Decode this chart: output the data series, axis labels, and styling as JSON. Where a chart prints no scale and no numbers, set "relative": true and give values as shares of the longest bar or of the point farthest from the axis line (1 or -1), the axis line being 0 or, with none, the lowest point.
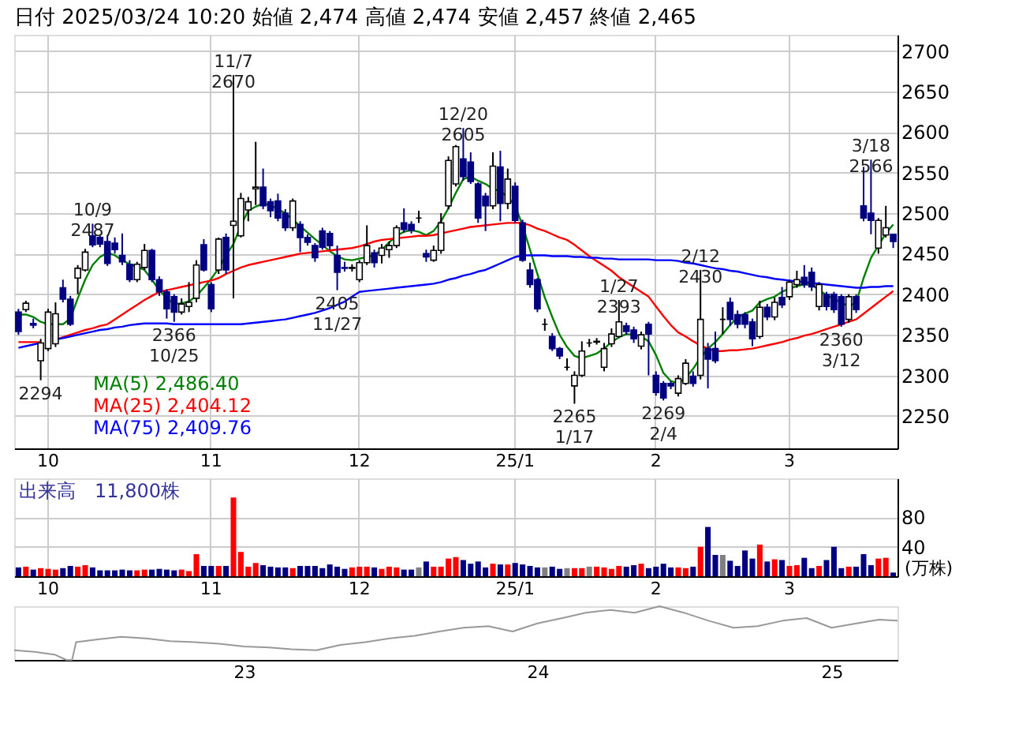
{
  "chart_data": [
    {
      "type": "candlestick",
      "title": "日付 2025/03/24 10:20 始値 2,474 高値 2,474 安値 2,457 終値 2,465",
      "categories": [
        null,
        null,
        null,
        null,
        "10",
        null,
        null,
        null,
        null,
        null,
        null,
        null,
        null,
        null,
        null,
        null,
        null,
        null,
        null,
        null,
        null,
        null,
        null,
        null,
        null,
        null,
        "11",
        null,
        null,
        null,
        null,
        null,
        null,
        null,
        null,
        null,
        null,
        null,
        null,
        null,
        null,
        null,
        null,
        null,
        null,
        null,
        "12",
        null,
        null,
        null,
        null,
        null,
        null,
        null,
        null,
        null,
        null,
        null,
        null,
        null,
        null,
        null,
        null,
        null,
        null,
        null,
        null,
        "25/1",
        null,
        null,
        null,
        null,
        null,
        null,
        null,
        null,
        null,
        null,
        null,
        null,
        null,
        null,
        null,
        null,
        null,
        null,
        "2",
        null,
        null,
        null,
        null,
        null,
        null,
        null,
        null,
        null,
        null,
        null,
        null,
        null,
        null,
        null,
        null,
        null,
        "3",
        null,
        null,
        null,
        null,
        null,
        null,
        null,
        null,
        null,
        null,
        null,
        null,
        null,
        null
      ],
      "ohlc": [
        [
          2378,
          2382,
          2350,
          2354
        ],
        [
          2381,
          2392,
          2378,
          2389
        ],
        [
          2364,
          2370,
          2358,
          2362
        ],
        [
          2318,
          2345,
          2294,
          2340
        ],
        [
          2333,
          2382,
          2330,
          2378
        ],
        [
          2339,
          2390,
          2335,
          2376
        ],
        [
          2408,
          2418,
          2390,
          2394
        ],
        [
          2394,
          2398,
          2361,
          2363
        ],
        [
          2420,
          2436,
          2400,
          2432
        ],
        [
          2430,
          2456,
          2428,
          2452
        ],
        [
          2472,
          2487,
          2458,
          2461
        ],
        [
          2470,
          2472,
          2458,
          2462
        ],
        [
          2465,
          2473,
          2435,
          2438
        ],
        [
          2463,
          2470,
          2450,
          2455
        ],
        [
          2448,
          2475,
          2436,
          2440
        ],
        [
          2437,
          2442,
          2415,
          2418
        ],
        [
          2418,
          2440,
          2415,
          2437
        ],
        [
          2433,
          2462,
          2430,
          2454
        ],
        [
          2454,
          2456,
          2415,
          2418
        ],
        [
          2418,
          2422,
          2398,
          2403
        ],
        [
          2403,
          2406,
          2370,
          2382
        ],
        [
          2397,
          2400,
          2366,
          2378
        ],
        [
          2378,
          2395,
          2375,
          2388
        ],
        [
          2385,
          2415,
          2378,
          2390
        ],
        [
          2395,
          2442,
          2390,
          2436
        ],
        [
          2461,
          2468,
          2428,
          2430
        ],
        [
          2412,
          2415,
          2378,
          2382
        ],
        [
          2430,
          2470,
          2425,
          2468
        ],
        [
          2470,
          2475,
          2425,
          2430
        ],
        [
          2485,
          2670,
          2395,
          2490
        ],
        [
          2472,
          2525,
          2470,
          2518
        ],
        [
          2504,
          2520,
          2490,
          2514
        ],
        [
          2530,
          2588,
          2510,
          2532
        ],
        [
          2532,
          2555,
          2505,
          2509
        ],
        [
          2514,
          2518,
          2495,
          2503
        ],
        [
          2515,
          2524,
          2490,
          2494
        ],
        [
          2500,
          2505,
          2478,
          2482
        ],
        [
          2482,
          2518,
          2478,
          2515
        ],
        [
          2486,
          2490,
          2452,
          2470
        ],
        [
          2470,
          2474,
          2460,
          2464
        ],
        [
          2460,
          2463,
          2440,
          2445
        ],
        [
          2478,
          2482,
          2455,
          2458
        ],
        [
          2475,
          2478,
          2455,
          2460
        ],
        [
          2448,
          2460,
          2405,
          2427
        ],
        [
          2433,
          2440,
          2428,
          2432
        ],
        [
          2432,
          2437,
          2428,
          2433
        ],
        [
          2418,
          2442,
          2415,
          2439
        ],
        [
          2439,
          2485,
          2436,
          2460
        ],
        [
          2451,
          2455,
          2433,
          2439
        ],
        [
          2448,
          2462,
          2438,
          2457
        ],
        [
          2455,
          2465,
          2445,
          2460
        ],
        [
          2460,
          2485,
          2457,
          2482
        ],
        [
          2488,
          2506,
          2476,
          2480
        ],
        [
          2486,
          2490,
          2475,
          2479
        ],
        [
          2494,
          2503,
          2488,
          2494
        ],
        [
          2450,
          2455,
          2440,
          2446
        ],
        [
          2442,
          2460,
          2440,
          2454
        ],
        [
          2454,
          2500,
          2450,
          2488
        ],
        [
          2509,
          2570,
          2505,
          2565
        ],
        [
          2536,
          2584,
          2533,
          2582
        ],
        [
          2567,
          2605,
          2540,
          2545
        ],
        [
          2563,
          2575,
          2536,
          2539
        ],
        [
          2536,
          2538,
          2488,
          2494
        ],
        [
          2521,
          2525,
          2478,
          2509
        ],
        [
          2509,
          2575,
          2505,
          2558
        ],
        [
          2557,
          2577,
          2490,
          2512
        ],
        [
          2512,
          2555,
          2505,
          2542
        ],
        [
          2533,
          2538,
          2488,
          2491
        ],
        [
          2488,
          2492,
          2440,
          2442
        ],
        [
          2430,
          2439,
          2408,
          2412
        ],
        [
          2418,
          2420,
          2378,
          2382
        ],
        [
          2363,
          2370,
          2355,
          2363
        ],
        [
          2348,
          2352,
          2330,
          2333
        ],
        [
          2333,
          2335,
          2320,
          2324
        ],
        [
          2310,
          2321,
          2306,
          2310
        ],
        [
          2287,
          2305,
          2265,
          2300
        ],
        [
          2300,
          2342,
          2298,
          2330
        ],
        [
          2340,
          2345,
          2335,
          2340
        ],
        [
          2341,
          2346,
          2338,
          2342
        ],
        [
          2310,
          2340,
          2305,
          2333
        ],
        [
          2339,
          2358,
          2335,
          2351
        ],
        [
          2348,
          2393,
          2346,
          2366
        ],
        [
          2361,
          2365,
          2350,
          2354
        ],
        [
          2356,
          2360,
          2340,
          2345
        ],
        [
          2336,
          2354,
          2332,
          2350
        ],
        [
          2363,
          2366,
          2300,
          2351
        ],
        [
          2300,
          2305,
          2275,
          2279
        ],
        [
          2290,
          2293,
          2269,
          2272
        ],
        [
          2290,
          2293,
          2283,
          2287
        ],
        [
          2278,
          2300,
          2274,
          2296
        ],
        [
          2290,
          2320,
          2288,
          2315
        ],
        [
          2299,
          2305,
          2286,
          2290
        ],
        [
          2300,
          2430,
          2295,
          2369
        ],
        [
          2333,
          2340,
          2284,
          2320
        ],
        [
          2333,
          2354,
          2315,
          2318
        ],
        [
          2369,
          2384,
          2351,
          2369
        ],
        [
          2390,
          2396,
          2361,
          2369
        ],
        [
          2375,
          2380,
          2358,
          2363
        ],
        [
          2375,
          2378,
          2358,
          2363
        ],
        [
          2366,
          2370,
          2336,
          2345
        ],
        [
          2348,
          2392,
          2345,
          2384
        ],
        [
          2384,
          2388,
          2368,
          2372
        ],
        [
          2372,
          2396,
          2368,
          2390
        ],
        [
          2396,
          2409,
          2383,
          2387
        ],
        [
          2397,
          2418,
          2393,
          2415
        ],
        [
          2412,
          2429,
          2408,
          2418
        ],
        [
          2421,
          2436,
          2408,
          2412
        ],
        [
          2427,
          2433,
          2404,
          2409
        ],
        [
          2385,
          2415,
          2380,
          2412
        ],
        [
          2400,
          2403,
          2380,
          2385
        ],
        [
          2400,
          2403,
          2377,
          2381
        ],
        [
          2397,
          2400,
          2360,
          2363
        ],
        [
          2369,
          2400,
          2365,
          2397
        ],
        [
          2397,
          2400,
          2377,
          2381
        ],
        [
          2509,
          2557,
          2490,
          2494
        ],
        [
          2500,
          2566,
          2474,
          2491
        ],
        [
          2457,
          2494,
          2450,
          2491
        ],
        [
          2473,
          2509,
          2470,
          2482
        ],
        [
          2474,
          2474,
          2457,
          2465
        ]
      ],
      "series": [
        {
          "name": "MA(5)  2,486.40",
          "type": "line",
          "color": "#008000",
          "values": [
            2375,
            2375,
            2372,
            2366,
            2363,
            2363,
            2363,
            2370,
            2395,
            2418,
            2436,
            2446,
            2451,
            2448,
            2442,
            2437,
            2434,
            2430,
            2418,
            2405,
            2395,
            2388,
            2389,
            2391,
            2398,
            2408,
            2419,
            2432,
            2448,
            2462,
            2485,
            2503,
            2508,
            2512,
            2510,
            2505,
            2500,
            2492,
            2484,
            2476,
            2468,
            2461,
            2453,
            2447,
            2443,
            2442,
            2444,
            2446,
            2448,
            2455,
            2464,
            2472,
            2477,
            2479,
            2477,
            2473,
            2478,
            2490,
            2506,
            2525,
            2542,
            2545,
            2540,
            2536,
            2530,
            2527,
            2520,
            2509,
            2485,
            2455,
            2425,
            2396,
            2372,
            2350,
            2335,
            2324,
            2321,
            2324,
            2327,
            2333,
            2341,
            2347,
            2351,
            2350,
            2348,
            2342,
            2325,
            2303,
            2293,
            2290,
            2297,
            2308,
            2322,
            2333,
            2341,
            2351,
            2362,
            2372,
            2376,
            2380,
            2390,
            2394,
            2397,
            2403,
            2407,
            2410,
            2412,
            2412,
            2405,
            2399,
            2394,
            2390,
            2385,
            2390,
            2420,
            2445,
            2460,
            2475,
            2486
          ]
        },
        {
          "name": "MA(25)  2,404.12",
          "type": "line",
          "color": "#ff0000",
          "values": [
            2341,
            2341,
            2341,
            2341,
            null,
            2344,
            2347,
            2350,
            2353,
            2356,
            2358,
            2361,
            2363,
            2369,
            2375,
            2381,
            2387,
            2393,
            2398,
            2403,
            2405,
            2407,
            2409,
            2411,
            2413,
            2415,
            2417,
            2420,
            2425,
            2429,
            2433,
            2436,
            2438,
            2440,
            2442,
            2444,
            2446,
            2448,
            2450,
            2451,
            2452,
            2453,
            2454,
            2455,
            2456,
            2457,
            2459,
            2462,
            2465,
            2467,
            2468,
            2469,
            2470,
            2471,
            2472,
            2472,
            2473,
            2475,
            2477,
            2479,
            2481,
            2483,
            2484,
            2485,
            2486,
            2487,
            2488,
            2488,
            2488,
            2485,
            2481,
            2478,
            2474,
            2470,
            2467,
            2461,
            2454,
            2447,
            2441,
            2435,
            2429,
            2421,
            2415,
            2409,
            2403,
            2397,
            2385,
            2373,
            2362,
            2353,
            2348,
            2342,
            2337,
            2333,
            2330,
            2330,
            2331,
            2331,
            2332,
            2333,
            2335,
            2337,
            2339,
            2341,
            2344,
            2346,
            2349,
            2351,
            2354,
            2357,
            2360,
            2363,
            2366,
            2369,
            2376,
            2383,
            2390,
            2397,
            2404
          ]
        },
        {
          "name": "MA(75)  2,409.76",
          "type": "line",
          "color": "#0000ff",
          "values": [
            2334,
            2336,
            2338,
            2340,
            null,
            2344,
            2346,
            2348,
            2350,
            2352,
            2354,
            2356,
            2357,
            2359,
            2360,
            2362,
            2363,
            2364,
            2364,
            2364,
            2364,
            2363,
            2363,
            2363,
            2363,
            2363,
            2363,
            2363,
            2363,
            2363,
            2363,
            2364,
            2365,
            2366,
            2367,
            2368,
            2369,
            2371,
            2373,
            2375,
            2377,
            2380,
            2383,
            2387,
            2391,
            2397,
            2403,
            2404,
            2405,
            2406,
            2407,
            2408,
            2409,
            2410,
            2411,
            2412,
            2413,
            2415,
            2418,
            2420,
            2423,
            2425,
            2428,
            2430,
            2434,
            2438,
            2442,
            2446,
            2448,
            2448,
            2448,
            2448,
            2447,
            2447,
            2447,
            2446,
            2446,
            2445,
            2445,
            2444,
            2444,
            2443,
            2443,
            2443,
            2443,
            2443,
            2442,
            2442,
            2442,
            2441,
            2439,
            2438,
            2436,
            2434,
            2432,
            2431,
            2429,
            2428,
            2426,
            2424,
            2422,
            2421,
            2419,
            2418,
            2417,
            2416,
            2415,
            2414,
            2413,
            2412,
            2411,
            2410,
            2409,
            2408,
            2408,
            2409,
            2409,
            2410,
            2410
          ]
        }
      ],
      "ylim": [
        2210,
        2720
      ],
      "yticks": [
        2250,
        2300,
        2350,
        2400,
        2450,
        2500,
        2550,
        2600,
        2650,
        2700
      ],
      "grid": true,
      "legend": "bottom left",
      "annotations": [
        {
          "text": "2294",
          "y": 2294
        },
        {
          "text": "10/9\n2487",
          "y": 2487
        },
        {
          "text": "2366\n10/25",
          "y": 2366
        },
        {
          "text": "11/7\n2670",
          "y": 2670
        },
        {
          "text": "2405\n11/27",
          "y": 2405
        },
        {
          "text": "12/20\n2605",
          "y": 2605
        },
        {
          "text": "2265\n1/17",
          "y": 2265
        },
        {
          "text": "1/27\n2393",
          "y": 2393
        },
        {
          "text": "2269\n2/4",
          "y": 2269
        },
        {
          "text": "2/12\n2430",
          "y": 2430
        },
        {
          "text": "2360\n3/12",
          "y": 2360
        },
        {
          "text": "3/18\n2566",
          "y": 2566
        }
      ]
    },
    {
      "type": "bar",
      "ylabel": "(万株)",
      "annotations": [
        "出来高　11,800株"
      ],
      "categories": [
        null,
        null,
        null,
        null,
        "10",
        null,
        null,
        null,
        null,
        null,
        null,
        null,
        null,
        null,
        null,
        null,
        null,
        null,
        null,
        null,
        null,
        null,
        null,
        null,
        null,
        null,
        "11",
        null,
        null,
        null,
        null,
        null,
        null,
        null,
        null,
        null,
        null,
        null,
        null,
        null,
        null,
        null,
        null,
        null,
        null,
        null,
        "12",
        null,
        null,
        null,
        null,
        null,
        null,
        null,
        null,
        null,
        null,
        null,
        null,
        null,
        null,
        null,
        null,
        null,
        null,
        null,
        null,
        "25/1",
        null,
        null,
        null,
        null,
        null,
        null,
        null,
        null,
        null,
        null,
        null,
        null,
        null,
        null,
        null,
        null,
        null,
        null,
        "2",
        null,
        null,
        null,
        null,
        null,
        null,
        null,
        null,
        null,
        null,
        null,
        null,
        null,
        null,
        null,
        null,
        null,
        "3",
        null,
        null,
        null,
        null,
        null,
        null,
        null,
        null,
        null,
        null,
        null,
        null,
        null,
        null
      ],
      "values": [
        12,
        13,
        9,
        11,
        10,
        9,
        11,
        14,
        13,
        15,
        12,
        8,
        8,
        8,
        9,
        8,
        8,
        9,
        9,
        10,
        9,
        8,
        9,
        7,
        30,
        14,
        14,
        14,
        14,
        107,
        33,
        13,
        18,
        15,
        13,
        12,
        12,
        11,
        14,
        14,
        14,
        11,
        16,
        13,
        10,
        12,
        13,
        13,
        12,
        10,
        13,
        12,
        9,
        9,
        12,
        20,
        13,
        13,
        24,
        26,
        22,
        17,
        20,
        12,
        17,
        16,
        16,
        18,
        16,
        14,
        12,
        12,
        13,
        10,
        11,
        11,
        11,
        13,
        13,
        12,
        10,
        14,
        13,
        15,
        17,
        11,
        13,
        17,
        12,
        12,
        11,
        13,
        40,
        67,
        29,
        29,
        21,
        14,
        35,
        24,
        43,
        20,
        23,
        22,
        14,
        15,
        25,
        11,
        14,
        22,
        40,
        11,
        13,
        13,
        30,
        15,
        24,
        25,
        5
      ],
      "colors": [
        "#000080",
        "#ff0000",
        "#000080",
        "#ff0000",
        "#ff0000",
        "#ff0000",
        "#000080",
        "#000080",
        "#ff0000",
        "#ff0000",
        "#000080",
        "#000080",
        "#000080",
        "#000080",
        "#000080",
        "#000080",
        "#ff0000",
        "#ff0000",
        "#000080",
        "#000080",
        "#000080",
        "#000080",
        "#ff0000",
        "#ff0000",
        "#ff0000",
        "#000080",
        "#000080",
        "#ff0000",
        "#000080",
        "#ff0000",
        "#ff0000",
        "#ff0000",
        "#ff0000",
        "#000080",
        "#000080",
        "#000080",
        "#000080",
        "#ff0000",
        "#000080",
        "#000080",
        "#000080",
        "#000080",
        "#000080",
        "#000080",
        "#000080",
        "#ff0000",
        "#ff0000",
        "#ff0000",
        "#000080",
        "#ff0000",
        "#ff0000",
        "#ff0000",
        "#000080",
        "#000080",
        "#808080",
        "#000080",
        "#ff0000",
        "#ff0000",
        "#ff0000",
        "#ff0000",
        "#000080",
        "#000080",
        "#000080",
        "#000080",
        "#ff0000",
        "#000080",
        "#ff0000",
        "#000080",
        "#000080",
        "#000080",
        "#000080",
        "#808080",
        "#000080",
        "#000080",
        "#808080",
        "#ff0000",
        "#ff0000",
        "#808080",
        "#ff0000",
        "#ff0000",
        "#ff0000",
        "#ff0000",
        "#000080",
        "#000080",
        "#ff0000",
        "#000080",
        "#000080",
        "#000080",
        "#000080",
        "#ff0000",
        "#ff0000",
        "#000080",
        "#ff0000",
        "#000080",
        "#000080",
        "#808080",
        "#000080",
        "#000080",
        "#000080",
        "#000080",
        "#ff0000",
        "#000080",
        "#ff0000",
        "#000080",
        "#ff0000",
        "#ff0000",
        "#000080",
        "#000080",
        "#ff0000",
        "#000080",
        "#000080",
        "#000080",
        "#ff0000",
        "#000080",
        "#000080",
        "#000080",
        "#ff0000",
        "#ff0000",
        "#000080"
      ],
      "ylim": [
        0,
        133
      ],
      "yticks": [
        40,
        80
      ],
      "grid": true
    },
    {
      "type": "line",
      "relative": true,
      "color": "#999999",
      "x": [
        "2022-03-21",
        "2022-04-15",
        "2022-05-10",
        "2022-05-25",
        "2022-06-01",
        "2022-06-06",
        "2022-07",
        "2022-08",
        "2022-09",
        "2022-10",
        "2022-11",
        "2022-12",
        "2023-01",
        "2023-02",
        "2023-03",
        "2023-04",
        "2023-05",
        "2023-06",
        "2023-07",
        "2023-08",
        "2023-09",
        "2023-10",
        "2023-11",
        "2023-12",
        "2024-01",
        "2024-02",
        "2024-03",
        "2024-04",
        "2024-05",
        "2024-06",
        "2024-07",
        "2024-08",
        "2024-09",
        "2024-10",
        "2024-11",
        "2024-12",
        "2025-01",
        "2025-02",
        "2025-03",
        "2025-03-24"
      ],
      "values": [
        0.18,
        0.15,
        0.1,
        0,
        0,
        0.33,
        0.38,
        0.43,
        0.4,
        0.35,
        0.33,
        0.3,
        0.25,
        0.23,
        0.2,
        0.18,
        0.28,
        0.33,
        0.4,
        0.45,
        0.53,
        0.6,
        0.63,
        0.53,
        0.68,
        0.78,
        0.88,
        0.93,
        0.88,
        1,
        0.88,
        0.73,
        0.6,
        0.63,
        0.73,
        0.78,
        0.6,
        0.68,
        0.75,
        0.73
      ],
      "xlim": [
        "2022-03-21",
        "2025-03-24"
      ],
      "xticks": [
        {
          "value": "2023-01-01",
          "label": "23"
        },
        {
          "value": "2024-01-01",
          "label": "24"
        },
        {
          "value": "2025-01-01",
          "label": "25"
        }
      ]
    }
  ]
}
